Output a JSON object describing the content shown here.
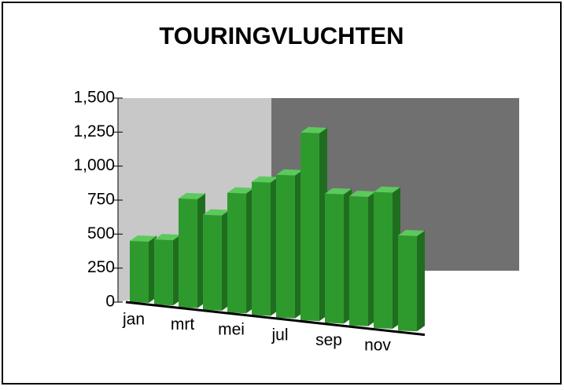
{
  "chart_data": {
    "type": "bar",
    "title": "TOURINGVLUCHTEN",
    "categories": [
      "jan",
      null,
      "mrt",
      null,
      "mei",
      null,
      "jul",
      null,
      "sep",
      null,
      "nov",
      null
    ],
    "values": [
      450,
      480,
      800,
      700,
      880,
      980,
      1050,
      1380,
      950,
      950,
      1000,
      700
    ],
    "color": "#2e9a2e",
    "ylim": [
      0,
      1500
    ],
    "yticks": [
      0,
      {
        "value": 250,
        "label": "250"
      },
      {
        "value": 500,
        "label": "500"
      },
      {
        "value": 750,
        "label": "750"
      },
      {
        "value": 1000,
        "label": "1,000"
      },
      {
        "value": 1250,
        "label": "1,250"
      },
      {
        "value": 1500,
        "label": "1,500"
      }
    ]
  }
}
